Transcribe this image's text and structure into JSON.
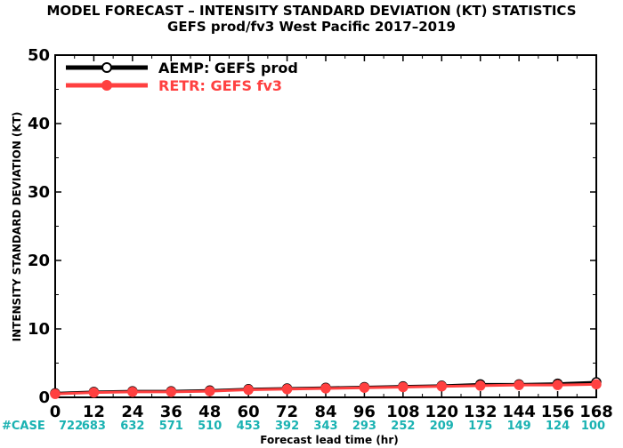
{
  "chart_data": {
    "type": "line",
    "title": "MODEL FORECAST – INTENSITY STANDARD DEVIATION (KT) STATISTICS",
    "subtitle": "GEFS prod/fv3 West Pacific 2017–2019",
    "xlabel": "Forecast lead time (hr)",
    "ylabel": "INTENSITY STANDARD DEVIATION (KT)",
    "x": [
      0,
      12,
      24,
      36,
      48,
      60,
      72,
      84,
      96,
      108,
      120,
      132,
      144,
      156,
      168
    ],
    "xlim": [
      0,
      168
    ],
    "ylim": [
      0,
      50
    ],
    "yticks": [
      0,
      10,
      20,
      30,
      40,
      50
    ],
    "grid": false,
    "legend_position": "top-left",
    "case_label": "#CASE",
    "case_counts": [
      722,
      683,
      632,
      571,
      510,
      453,
      392,
      343,
      293,
      252,
      209,
      175,
      149,
      124,
      100
    ],
    "case_color": "#1ab2b2",
    "series": [
      {
        "name": "AEMP: GEFS prod",
        "color": "#000000",
        "marker_fill": "#ffffff",
        "values": [
          0.6,
          0.8,
          0.9,
          0.9,
          1.0,
          1.2,
          1.3,
          1.4,
          1.5,
          1.6,
          1.7,
          1.9,
          1.9,
          2.0,
          2.2
        ]
      },
      {
        "name": "RETR: GEFS fv3",
        "color": "#ff4040",
        "marker_fill": "#ff4040",
        "values": [
          0.5,
          0.7,
          0.8,
          0.8,
          0.9,
          1.1,
          1.2,
          1.3,
          1.4,
          1.5,
          1.6,
          1.7,
          1.8,
          1.8,
          1.9
        ]
      }
    ]
  }
}
